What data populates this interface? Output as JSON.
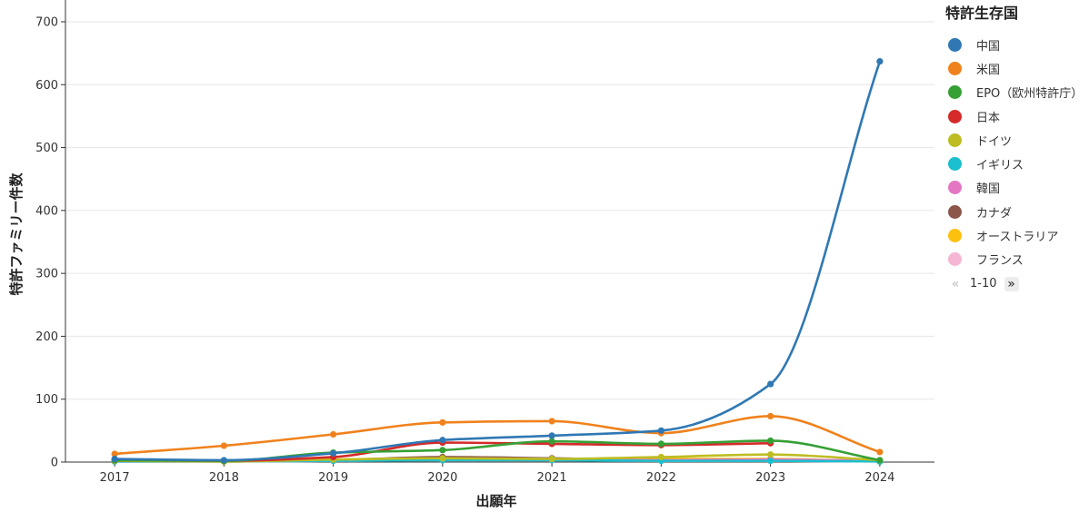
{
  "chart_data": {
    "type": "line",
    "xlabel": "出願年",
    "ylabel": "特許ファミリー件数",
    "x": [
      2017,
      2018,
      2019,
      2020,
      2021,
      2022,
      2023,
      2024
    ],
    "xlim": [
      2016.55,
      2024.5
    ],
    "ylim": [
      0,
      700
    ],
    "yticks": [
      0,
      100,
      200,
      300,
      400,
      500,
      600,
      700
    ],
    "grid": true,
    "legend_title": "特許生存国",
    "legend_position": "right",
    "series": [
      {
        "name": "中国",
        "color": "#2f78b4",
        "values": [
          5,
          3,
          14,
          35,
          42,
          50,
          124,
          637
        ]
      },
      {
        "name": "米国",
        "color": "#f0821d",
        "values": [
          13,
          26,
          44,
          63,
          65,
          46,
          73,
          16
        ]
      },
      {
        "name": "EPO（欧州特許庁）",
        "color": "#36a035",
        "values": [
          3,
          2,
          15,
          19,
          33,
          29,
          34,
          3
        ]
      },
      {
        "name": "日本",
        "color": "#d42a2a",
        "values": [
          3,
          2,
          8,
          31,
          29,
          27,
          30,
          null
        ]
      },
      {
        "name": "ドイツ",
        "color": "#bdbd22",
        "values": [
          2,
          1,
          4,
          6,
          5,
          8,
          12,
          3
        ]
      },
      {
        "name": "イギリス",
        "color": "#1bbfcf",
        "values": [
          1,
          1,
          2,
          3,
          3,
          2,
          2,
          1
        ]
      },
      {
        "name": "韓国",
        "color": "#e377c2",
        "values": [
          1,
          1,
          3,
          5,
          4,
          3,
          4,
          2
        ]
      },
      {
        "name": "カナダ",
        "color": "#8c564b",
        "values": [
          2,
          1,
          3,
          8,
          6,
          3,
          4,
          1
        ]
      },
      {
        "name": "オーストラリア",
        "color": "#fcc00f",
        "values": [
          2,
          1,
          4,
          6,
          5,
          5,
          5,
          1
        ]
      },
      {
        "name": "フランス",
        "color": "#f4b6d2",
        "values": [
          1,
          1,
          2,
          3,
          3,
          2,
          2,
          1
        ]
      }
    ]
  },
  "legend": {
    "title": "特許生存国",
    "items": [
      {
        "label": "中国",
        "color": "#2f78b4"
      },
      {
        "label": "米国",
        "color": "#f0821d"
      },
      {
        "label": "EPO（欧州特許庁）",
        "color": "#36a035"
      },
      {
        "label": "日本",
        "color": "#d42a2a"
      },
      {
        "label": "ドイツ",
        "color": "#bdbd22"
      },
      {
        "label": "イギリス",
        "color": "#1bbfcf"
      },
      {
        "label": "韓国",
        "color": "#e377c2"
      },
      {
        "label": "カナダ",
        "color": "#8c564b"
      },
      {
        "label": "オーストラリア",
        "color": "#fcc00f"
      },
      {
        "label": "フランス",
        "color": "#f4b6d2"
      }
    ],
    "pager_text": "1-10",
    "pager_prev_icon": "double-chevron-left-icon",
    "pager_next_icon": "double-chevron-right-icon"
  }
}
